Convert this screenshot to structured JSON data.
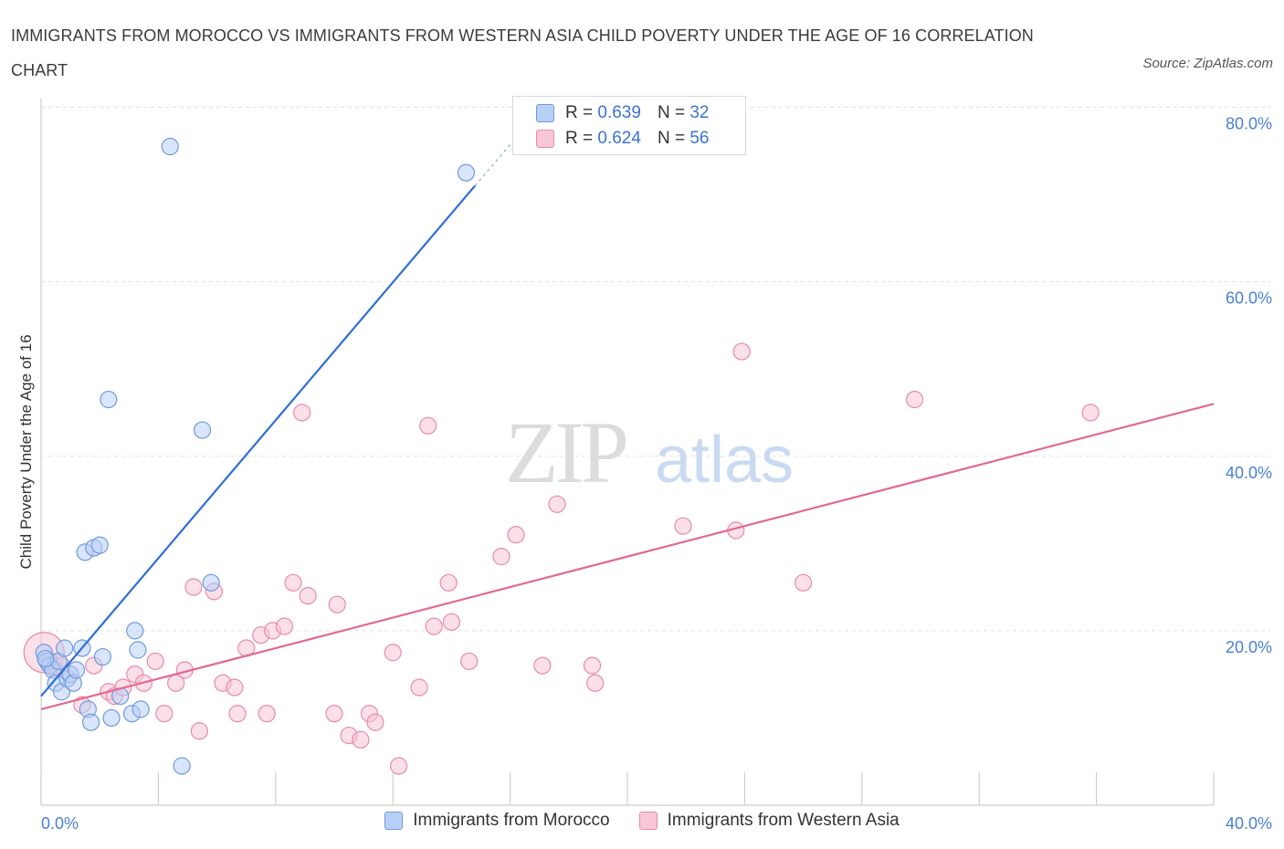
{
  "header": {
    "title": "IMMIGRANTS FROM MOROCCO VS IMMIGRANTS FROM WESTERN ASIA CHILD POVERTY UNDER THE AGE OF 16 CORRELATION CHART",
    "source": "Source: ZipAtlas.com"
  },
  "watermark": {
    "zip": "ZIP",
    "atlas": "atlas"
  },
  "legend": {
    "morocco": {
      "r_label": "R = ",
      "r_value": "0.639",
      "n_label": "N = ",
      "n_value": "32"
    },
    "western_asia": {
      "r_label": "R = ",
      "r_value": "0.624",
      "n_label": "N = ",
      "n_value": "56"
    }
  },
  "colors": {
    "morocco_fill": "#b9d0f5",
    "morocco_stroke": "#6d9ae0",
    "morocco_line": "#2f6fd0",
    "western_fill": "#f8c7d6",
    "western_stroke": "#e98aa9",
    "western_line": "#e06a93",
    "tick_text": "#4a7fd4",
    "grid": "#e1e1e1"
  },
  "chart_data": {
    "type": "scatter",
    "title": "IMMIGRANTS FROM MOROCCO VS IMMIGRANTS FROM WESTERN ASIA CHILD POVERTY UNDER THE AGE OF 16 CORRELATION CHART",
    "xlabel": "",
    "ylabel": "Child Poverty Under the Age of 16",
    "xlim": [
      0,
      40
    ],
    "ylim": [
      0,
      80
    ],
    "x_tick_labels": [
      "0.0%",
      "40.0%"
    ],
    "y_ticks": [
      20,
      40,
      60,
      80
    ],
    "y_tick_labels": [
      "20.0%",
      "40.0%",
      "60.0%",
      "80.0%"
    ],
    "series": [
      {
        "name": "Immigrants from Morocco",
        "trend": {
          "x0": 0,
          "y0": 12.5,
          "x1": 14.8,
          "y1": 71,
          "dashed_to_x": 16.2,
          "dashed_to_y": 76.5
        },
        "points": [
          [
            0.1,
            17.5
          ],
          [
            0.2,
            16.5
          ],
          [
            0.3,
            16.0
          ],
          [
            0.4,
            15.5
          ],
          [
            0.5,
            14.0
          ],
          [
            0.6,
            16.5
          ],
          [
            0.7,
            13.0
          ],
          [
            0.8,
            18.0
          ],
          [
            0.9,
            14.5
          ],
          [
            1.0,
            15.0
          ],
          [
            1.1,
            14.0
          ],
          [
            1.2,
            15.5
          ],
          [
            1.4,
            18.0
          ],
          [
            1.6,
            11.0
          ],
          [
            1.7,
            9.5
          ],
          [
            1.5,
            29.0
          ],
          [
            1.8,
            29.5
          ],
          [
            2.0,
            29.8
          ],
          [
            2.1,
            17.0
          ],
          [
            2.3,
            46.5
          ],
          [
            2.4,
            10.0
          ],
          [
            2.7,
            12.5
          ],
          [
            3.1,
            10.5
          ],
          [
            3.2,
            20.0
          ],
          [
            3.3,
            17.8
          ],
          [
            3.4,
            11.0
          ],
          [
            4.4,
            75.5
          ],
          [
            4.8,
            4.5
          ],
          [
            5.5,
            43.0
          ],
          [
            5.8,
            25.5
          ],
          [
            14.5,
            72.5
          ],
          [
            0.15,
            16.8
          ]
        ]
      },
      {
        "name": "Immigrants from Western Asia",
        "trend": {
          "x0": 0,
          "y0": 11.0,
          "x1": 40,
          "y1": 46.0
        },
        "points": [
          [
            0.1,
            17.5
          ],
          [
            0.3,
            16.5
          ],
          [
            0.5,
            15.5
          ],
          [
            0.7,
            16.0
          ],
          [
            1.0,
            15.0
          ],
          [
            1.4,
            11.5
          ],
          [
            1.8,
            16.0
          ],
          [
            2.3,
            13.0
          ],
          [
            2.5,
            12.5
          ],
          [
            2.8,
            13.5
          ],
          [
            3.2,
            15.0
          ],
          [
            3.5,
            14.0
          ],
          [
            3.9,
            16.5
          ],
          [
            4.2,
            10.5
          ],
          [
            4.6,
            14.0
          ],
          [
            4.9,
            15.5
          ],
          [
            5.2,
            25.0
          ],
          [
            5.4,
            8.5
          ],
          [
            5.9,
            24.5
          ],
          [
            6.2,
            14.0
          ],
          [
            6.6,
            13.5
          ],
          [
            6.7,
            10.5
          ],
          [
            7.0,
            18.0
          ],
          [
            7.5,
            19.5
          ],
          [
            7.7,
            10.5
          ],
          [
            7.9,
            20.0
          ],
          [
            8.3,
            20.5
          ],
          [
            8.6,
            25.5
          ],
          [
            8.9,
            45.0
          ],
          [
            9.1,
            24.0
          ],
          [
            10.0,
            10.5
          ],
          [
            10.1,
            23.0
          ],
          [
            10.5,
            8.0
          ],
          [
            10.9,
            7.5
          ],
          [
            11.2,
            10.5
          ],
          [
            11.4,
            9.5
          ],
          [
            12.0,
            17.5
          ],
          [
            12.2,
            4.5
          ],
          [
            12.9,
            13.5
          ],
          [
            13.2,
            43.5
          ],
          [
            13.4,
            20.5
          ],
          [
            13.9,
            25.5
          ],
          [
            14.0,
            21.0
          ],
          [
            14.6,
            16.5
          ],
          [
            15.7,
            28.5
          ],
          [
            16.2,
            31.0
          ],
          [
            17.1,
            16.0
          ],
          [
            17.6,
            34.5
          ],
          [
            18.8,
            16.0
          ],
          [
            18.9,
            14.0
          ],
          [
            21.9,
            32.0
          ],
          [
            23.7,
            31.5
          ],
          [
            23.9,
            52.0
          ],
          [
            26.0,
            25.5
          ],
          [
            29.8,
            46.5
          ],
          [
            35.8,
            45.0
          ]
        ]
      }
    ]
  },
  "bottom_legend": {
    "morocco": "Immigrants from Morocco",
    "western_asia": "Immigrants from Western Asia"
  }
}
